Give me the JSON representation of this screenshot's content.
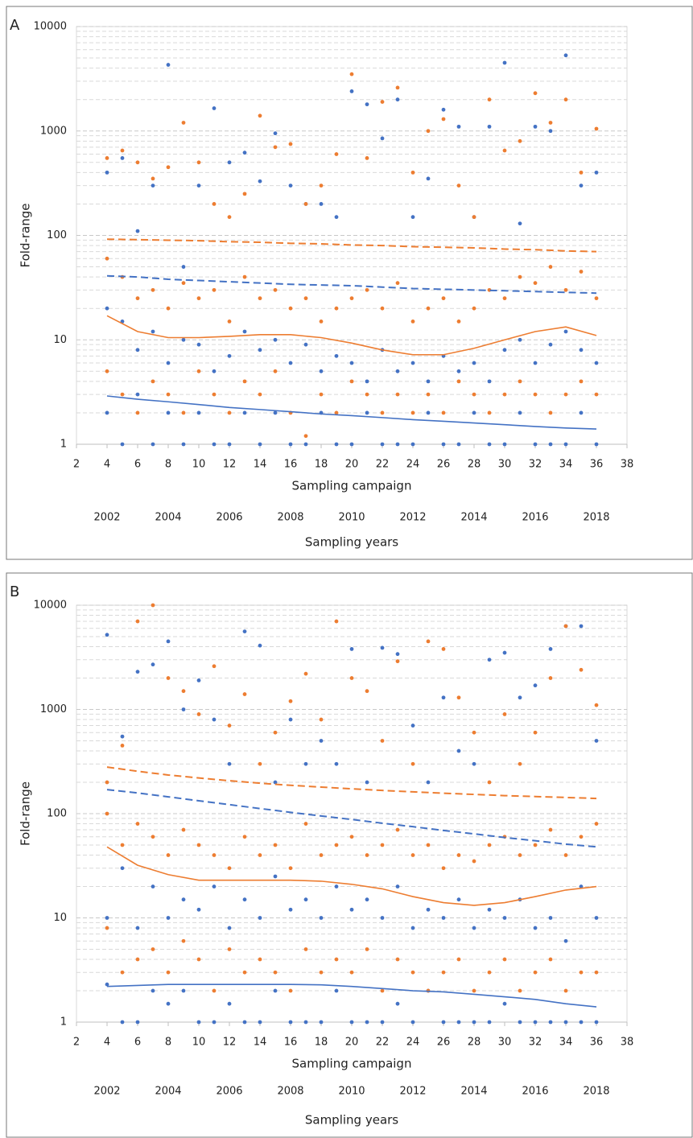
{
  "chart_data": [
    {
      "type": "scatter",
      "label": "A",
      "xlabel": "Sampling campaign",
      "ylabel": "Fold-range",
      "x2label": "Sampling years",
      "log_y": true,
      "grid": true,
      "xlim": [
        2,
        38
      ],
      "xticks": [
        2,
        4,
        6,
        8,
        10,
        12,
        14,
        16,
        18,
        20,
        22,
        24,
        26,
        28,
        30,
        32,
        34,
        36,
        38
      ],
      "ylim": [
        1,
        10000
      ],
      "yticks": [
        1,
        10,
        100,
        1000,
        10000
      ],
      "yminor": [
        2,
        3,
        4,
        5,
        6,
        7,
        8,
        9,
        20,
        30,
        40,
        50,
        60,
        70,
        80,
        90,
        200,
        300,
        400,
        500,
        600,
        700,
        800,
        900,
        2000,
        3000,
        4000,
        5000,
        6000,
        7000,
        8000,
        9000
      ],
      "x2lim": [
        2001,
        2019
      ],
      "x2ticks": [
        2002,
        2004,
        2006,
        2008,
        2010,
        2012,
        2014,
        2016,
        2018
      ],
      "x": [
        4,
        5,
        6,
        7,
        8,
        9,
        10,
        11,
        12,
        13,
        14,
        15,
        16,
        17,
        18,
        19,
        20,
        21,
        22,
        23,
        24,
        25,
        26,
        27,
        28,
        29,
        30,
        31,
        32,
        33,
        34,
        35,
        36
      ],
      "series": [
        {
          "color": "#4472c4",
          "style": "points",
          "values": [
            400,
            550,
            110,
            300,
            4300,
            50,
            300,
            1650,
            500,
            620,
            330,
            950,
            300,
            200,
            200,
            150,
            2400,
            1800,
            850,
            2000,
            150,
            350,
            1600,
            1100,
            150,
            1100,
            4500,
            130,
            1100,
            1000,
            5300,
            300,
            400
          ]
        },
        {
          "color": "#4472c4",
          "style": "points",
          "values": [
            20,
            15,
            8,
            12,
            6,
            10,
            9,
            5,
            7,
            12,
            8,
            10,
            6,
            9,
            5,
            7,
            6,
            4,
            8,
            5,
            6,
            4,
            7,
            5,
            6,
            4,
            8,
            10,
            6,
            9,
            12,
            8,
            6
          ]
        },
        {
          "color": "#4472c4",
          "style": "points",
          "values": [
            2,
            1,
            3,
            1,
            2,
            1,
            2,
            1,
            1,
            2,
            1,
            2,
            1,
            1,
            2,
            1,
            1,
            2,
            1,
            1,
            1,
            2,
            1,
            1,
            2,
            1,
            1,
            2,
            1,
            1,
            1,
            2,
            1
          ]
        },
        {
          "color": "#ed7d31",
          "style": "points",
          "values": [
            550,
            650,
            500,
            350,
            450,
            1200,
            500,
            200,
            150,
            250,
            1400,
            700,
            750,
            200,
            300,
            600,
            3500,
            550,
            1900,
            2600,
            400,
            1000,
            1300,
            300,
            150,
            2000,
            650,
            800,
            2300,
            1200,
            2000,
            400,
            1050
          ]
        },
        {
          "color": "#ed7d31",
          "style": "points",
          "values": [
            60,
            40,
            25,
            30,
            20,
            35,
            25,
            30,
            15,
            40,
            25,
            30,
            20,
            25,
            15,
            20,
            25,
            30,
            20,
            35,
            15,
            20,
            25,
            15,
            20,
            30,
            25,
            40,
            35,
            50,
            30,
            45,
            25
          ]
        },
        {
          "color": "#ed7d31",
          "style": "points",
          "values": [
            5,
            3,
            2,
            4,
            3,
            2,
            5,
            3,
            2,
            4,
            3,
            5,
            2,
            1.2,
            3,
            2,
            4,
            3,
            2,
            3,
            2,
            3,
            2,
            4,
            3,
            2,
            3,
            4,
            3,
            2,
            3,
            4,
            3
          ]
        },
        {
          "color": "#ed7d31",
          "style": "dashed",
          "x": [
            4,
            6,
            8,
            10,
            12,
            14,
            16,
            18,
            20,
            22,
            24,
            26,
            28,
            30,
            32,
            34,
            36
          ],
          "values": [
            92,
            91,
            90,
            89,
            87,
            86,
            84,
            83,
            81,
            80,
            78,
            77,
            76,
            74,
            73,
            71,
            70
          ]
        },
        {
          "color": "#4472c4",
          "style": "dashed",
          "x": [
            4,
            6,
            8,
            10,
            12,
            14,
            16,
            18,
            20,
            22,
            24,
            26,
            28,
            30,
            32,
            34,
            36
          ],
          "values": [
            41,
            40,
            38,
            37,
            36,
            35,
            34,
            33.5,
            33,
            32,
            31,
            30.5,
            30,
            29.5,
            29,
            28.5,
            28
          ]
        },
        {
          "color": "#ed7d31",
          "style": "solid",
          "x": [
            4,
            6,
            8,
            10,
            12,
            14,
            16,
            18,
            20,
            22,
            24,
            26,
            28,
            30,
            32,
            34,
            36
          ],
          "values": [
            17,
            12,
            10.5,
            10.5,
            10.8,
            11.2,
            11.2,
            10.5,
            9.3,
            8,
            7.2,
            7.2,
            8.3,
            10,
            12,
            13.3,
            11
          ]
        },
        {
          "color": "#4472c4",
          "style": "solid",
          "x": [
            4,
            6,
            8,
            10,
            12,
            14,
            16,
            18,
            20,
            22,
            24,
            26,
            28,
            30,
            32,
            34,
            36
          ],
          "values": [
            2.9,
            2.7,
            2.55,
            2.4,
            2.25,
            2.15,
            2.05,
            1.95,
            1.88,
            1.8,
            1.72,
            1.66,
            1.6,
            1.54,
            1.48,
            1.43,
            1.4
          ]
        }
      ]
    },
    {
      "type": "scatter",
      "label": "B",
      "xlabel": "Sampling campaign",
      "ylabel": "Fold-range",
      "x2label": "Sampling years",
      "log_y": true,
      "grid": true,
      "xlim": [
        2,
        38
      ],
      "xticks": [
        2,
        4,
        6,
        8,
        10,
        12,
        14,
        16,
        18,
        20,
        22,
        24,
        26,
        28,
        30,
        32,
        34,
        36,
        38
      ],
      "ylim": [
        1,
        10000
      ],
      "yticks": [
        1,
        10,
        100,
        1000,
        10000
      ],
      "yminor": [
        2,
        3,
        4,
        5,
        6,
        7,
        8,
        9,
        20,
        30,
        40,
        50,
        60,
        70,
        80,
        90,
        200,
        300,
        400,
        500,
        600,
        700,
        800,
        900,
        2000,
        3000,
        4000,
        5000,
        6000,
        7000,
        8000,
        9000
      ],
      "x2lim": [
        2001,
        2019
      ],
      "x2ticks": [
        2002,
        2004,
        2006,
        2008,
        2010,
        2012,
        2014,
        2016,
        2018
      ],
      "x": [
        4,
        5,
        6,
        7,
        8,
        9,
        10,
        11,
        12,
        13,
        14,
        15,
        16,
        17,
        18,
        19,
        20,
        21,
        22,
        23,
        24,
        25,
        26,
        27,
        28,
        29,
        30,
        31,
        32,
        33,
        34,
        35,
        36
      ],
      "series": [
        {
          "color": "#4472c4",
          "style": "points",
          "values": [
            5200,
            550,
            2300,
            2700,
            4500,
            1000,
            1900,
            800,
            300,
            5600,
            4100,
            200,
            800,
            300,
            500,
            300,
            3800,
            200,
            3900,
            3400,
            700,
            200,
            1300,
            400,
            300,
            3000,
            3500,
            1300,
            1700,
            3800,
            6300,
            6300,
            500
          ]
        },
        {
          "color": "#4472c4",
          "style": "points",
          "values": [
            10,
            30,
            8,
            20,
            10,
            15,
            12,
            20,
            8,
            15,
            10,
            25,
            12,
            15,
            10,
            20,
            12,
            15,
            10,
            20,
            8,
            12,
            10,
            15,
            8,
            12,
            10,
            15,
            8,
            10,
            6,
            20,
            10
          ]
        },
        {
          "color": "#4472c4",
          "style": "points",
          "values": [
            2.3,
            1,
            1,
            2,
            1.5,
            2,
            1,
            1,
            1.5,
            1,
            1,
            2,
            1,
            1,
            1,
            2,
            1,
            1,
            1,
            1.5,
            1,
            2,
            1,
            1,
            1,
            1,
            1.5,
            1,
            1,
            1,
            1,
            1,
            1
          ]
        },
        {
          "color": "#ed7d31",
          "style": "points",
          "values": [
            200,
            450,
            7000,
            10000,
            2000,
            1500,
            900,
            2600,
            700,
            1400,
            300,
            600,
            1200,
            2200,
            800,
            7000,
            2000,
            1500,
            500,
            2900,
            300,
            4500,
            3800,
            1300,
            600,
            200,
            900,
            300,
            600,
            2000,
            6300,
            2400,
            1100
          ]
        },
        {
          "color": "#ed7d31",
          "style": "points",
          "values": [
            100,
            50,
            80,
            60,
            40,
            70,
            50,
            40,
            30,
            60,
            40,
            50,
            30,
            80,
            40,
            50,
            60,
            40,
            50,
            70,
            40,
            50,
            30,
            40,
            35,
            50,
            60,
            40,
            50,
            70,
            40,
            60,
            80
          ]
        },
        {
          "color": "#ed7d31",
          "style": "points",
          "values": [
            8,
            3,
            4,
            5,
            3,
            6,
            4,
            2,
            5,
            3,
            4,
            3,
            2,
            5,
            3,
            4,
            3,
            5,
            2,
            4,
            3,
            2,
            3,
            4,
            2,
            3,
            4,
            2,
            3,
            4,
            2,
            3,
            3
          ]
        },
        {
          "color": "#ed7d31",
          "style": "dashed",
          "x": [
            4,
            6,
            8,
            10,
            12,
            14,
            16,
            18,
            20,
            22,
            24,
            26,
            28,
            30,
            32,
            34,
            36
          ],
          "values": [
            280,
            255,
            235,
            220,
            207,
            196,
            187,
            180,
            173,
            167,
            162,
            157,
            153,
            149,
            146,
            143,
            140
          ]
        },
        {
          "color": "#4472c4",
          "style": "dashed",
          "x": [
            4,
            6,
            8,
            10,
            12,
            14,
            16,
            18,
            20,
            22,
            24,
            26,
            28,
            30,
            32,
            34,
            36
          ],
          "values": [
            170,
            158,
            145,
            133,
            122,
            112,
            103,
            95,
            88,
            81,
            75,
            69,
            64,
            59,
            55,
            51,
            48
          ]
        },
        {
          "color": "#ed7d31",
          "style": "solid",
          "x": [
            4,
            6,
            8,
            10,
            12,
            14,
            16,
            18,
            20,
            22,
            24,
            26,
            28,
            30,
            32,
            34,
            36
          ],
          "values": [
            48,
            32,
            26,
            23,
            23,
            23,
            23,
            22.5,
            21,
            19,
            16,
            14,
            13.2,
            14,
            16,
            18.5,
            20
          ]
        },
        {
          "color": "#4472c4",
          "style": "solid",
          "x": [
            4,
            6,
            8,
            10,
            12,
            14,
            16,
            18,
            20,
            22,
            24,
            26,
            28,
            30,
            32,
            34,
            36
          ],
          "values": [
            2.2,
            2.25,
            2.3,
            2.3,
            2.3,
            2.3,
            2.3,
            2.28,
            2.2,
            2.1,
            2.0,
            1.95,
            1.85,
            1.75,
            1.65,
            1.5,
            1.4
          ]
        }
      ]
    }
  ]
}
